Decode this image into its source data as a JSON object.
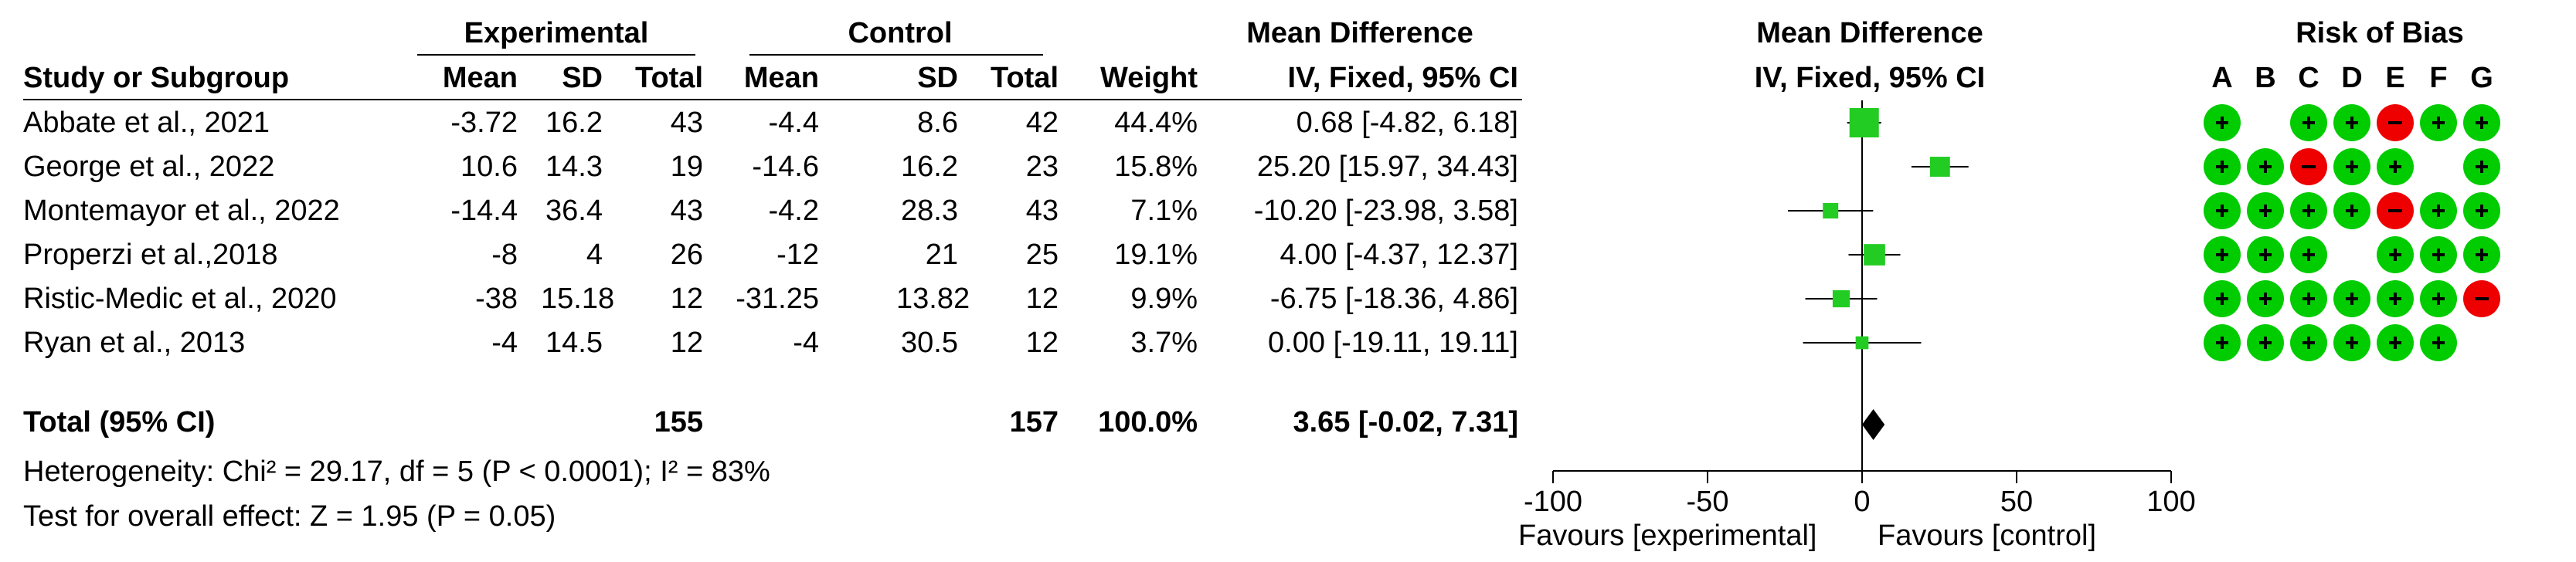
{
  "headers": {
    "study": "Study or Subgroup",
    "experimental": "Experimental",
    "control": "Control",
    "mean": "Mean",
    "sd": "SD",
    "total": "Total",
    "weight": "Weight",
    "md": "Mean Difference",
    "md_method": "IV, Fixed, 95% CI",
    "plot_title": "Mean Difference",
    "plot_method": "IV, Fixed, 95% CI",
    "rob_title": "Risk of Bias",
    "rob_domains": [
      "A",
      "B",
      "C",
      "D",
      "E",
      "F",
      "G"
    ]
  },
  "studies": [
    {
      "name": "Abbate et al., 2021",
      "e_mean": "-3.72",
      "e_sd": "16.2",
      "e_total": "43",
      "c_mean": "-4.4",
      "c_sd": "8.6",
      "c_total": "42",
      "weight": "44.4%",
      "md_text": "0.68 [-4.82, 6.18]",
      "rob": [
        "+",
        "",
        "+",
        "+",
        "-",
        "+",
        "+"
      ]
    },
    {
      "name": "George et al., 2022",
      "e_mean": "10.6",
      "e_sd": "14.3",
      "e_total": "19",
      "c_mean": "-14.6",
      "c_sd": "16.2",
      "c_total": "23",
      "weight": "15.8%",
      "md_text": "25.20 [15.97, 34.43]",
      "rob": [
        "+",
        "+",
        "-",
        "+",
        "+",
        "",
        "+"
      ]
    },
    {
      "name": "Montemayor et al., 2022",
      "e_mean": "-14.4",
      "e_sd": "36.4",
      "e_total": "43",
      "c_mean": "-4.2",
      "c_sd": "28.3",
      "c_total": "43",
      "weight": "7.1%",
      "md_text": "-10.20 [-23.98, 3.58]",
      "rob": [
        "+",
        "+",
        "+",
        "+",
        "-",
        "+",
        "+"
      ]
    },
    {
      "name": "Properzi et al.,2018",
      "e_mean": "-8",
      "e_sd": "4",
      "e_total": "26",
      "c_mean": "-12",
      "c_sd": "21",
      "c_total": "25",
      "weight": "19.1%",
      "md_text": "4.00 [-4.37, 12.37]",
      "rob": [
        "+",
        "+",
        "+",
        "",
        "+",
        "+",
        "+"
      ]
    },
    {
      "name": "Ristic-Medic et al., 2020",
      "e_mean": "-38",
      "e_sd": "15.18",
      "e_total": "12",
      "c_mean": "-31.25",
      "c_sd": "13.82",
      "c_total": "12",
      "weight": "9.9%",
      "md_text": "-6.75 [-18.36, 4.86]",
      "rob": [
        "+",
        "+",
        "+",
        "+",
        "+",
        "+",
        "-"
      ]
    },
    {
      "name": "Ryan et al., 2013",
      "e_mean": "-4",
      "e_sd": "14.5",
      "e_total": "12",
      "c_mean": "-4",
      "c_sd": "30.5",
      "c_total": "12",
      "weight": "3.7%",
      "md_text": "0.00 [-19.11, 19.11]",
      "rob": [
        "+",
        "+",
        "+",
        "+",
        "+",
        "+",
        ""
      ]
    }
  ],
  "total": {
    "label": "Total (95% CI)",
    "e_total": "155",
    "c_total": "157",
    "weight": "100.0%",
    "md_text": "3.65 [-0.02, 7.31]"
  },
  "heterogeneity": "Heterogeneity: Chi² = 29.17, df = 5 (P < 0.0001); I² = 83%",
  "overall_effect": "Test for overall effect: Z = 1.95 (P = 0.05)",
  "favours_left": "Favours [experimental]",
  "favours_right": "Favours [control]",
  "colors": {
    "study_marker": "#22cc22",
    "low_risk": "#00cc00",
    "high_risk": "#ee0000",
    "summary": "#000000"
  },
  "chart_data": {
    "type": "forest",
    "x_axis": {
      "range": [
        -100,
        100
      ],
      "ticks": [
        -100,
        -50,
        0,
        50,
        100
      ],
      "reference_line": 0
    },
    "categories": [
      "Abbate et al., 2021",
      "George et al., 2022",
      "Montemayor et al., 2022",
      "Properzi et al.,2018",
      "Ristic-Medic et al., 2020",
      "Ryan et al., 2013"
    ],
    "estimates": [
      0.68,
      25.2,
      -10.2,
      4.0,
      -6.75,
      0.0
    ],
    "ci_lower": [
      -4.82,
      15.97,
      -23.98,
      -4.37,
      -18.36,
      -19.11
    ],
    "ci_upper": [
      6.18,
      34.43,
      3.58,
      12.37,
      4.86,
      19.11
    ],
    "weights_percent": [
      44.4,
      15.8,
      7.1,
      19.1,
      9.9,
      3.7
    ],
    "summary": {
      "estimate": 3.65,
      "ci_lower": -0.02,
      "ci_upper": 7.31
    }
  }
}
